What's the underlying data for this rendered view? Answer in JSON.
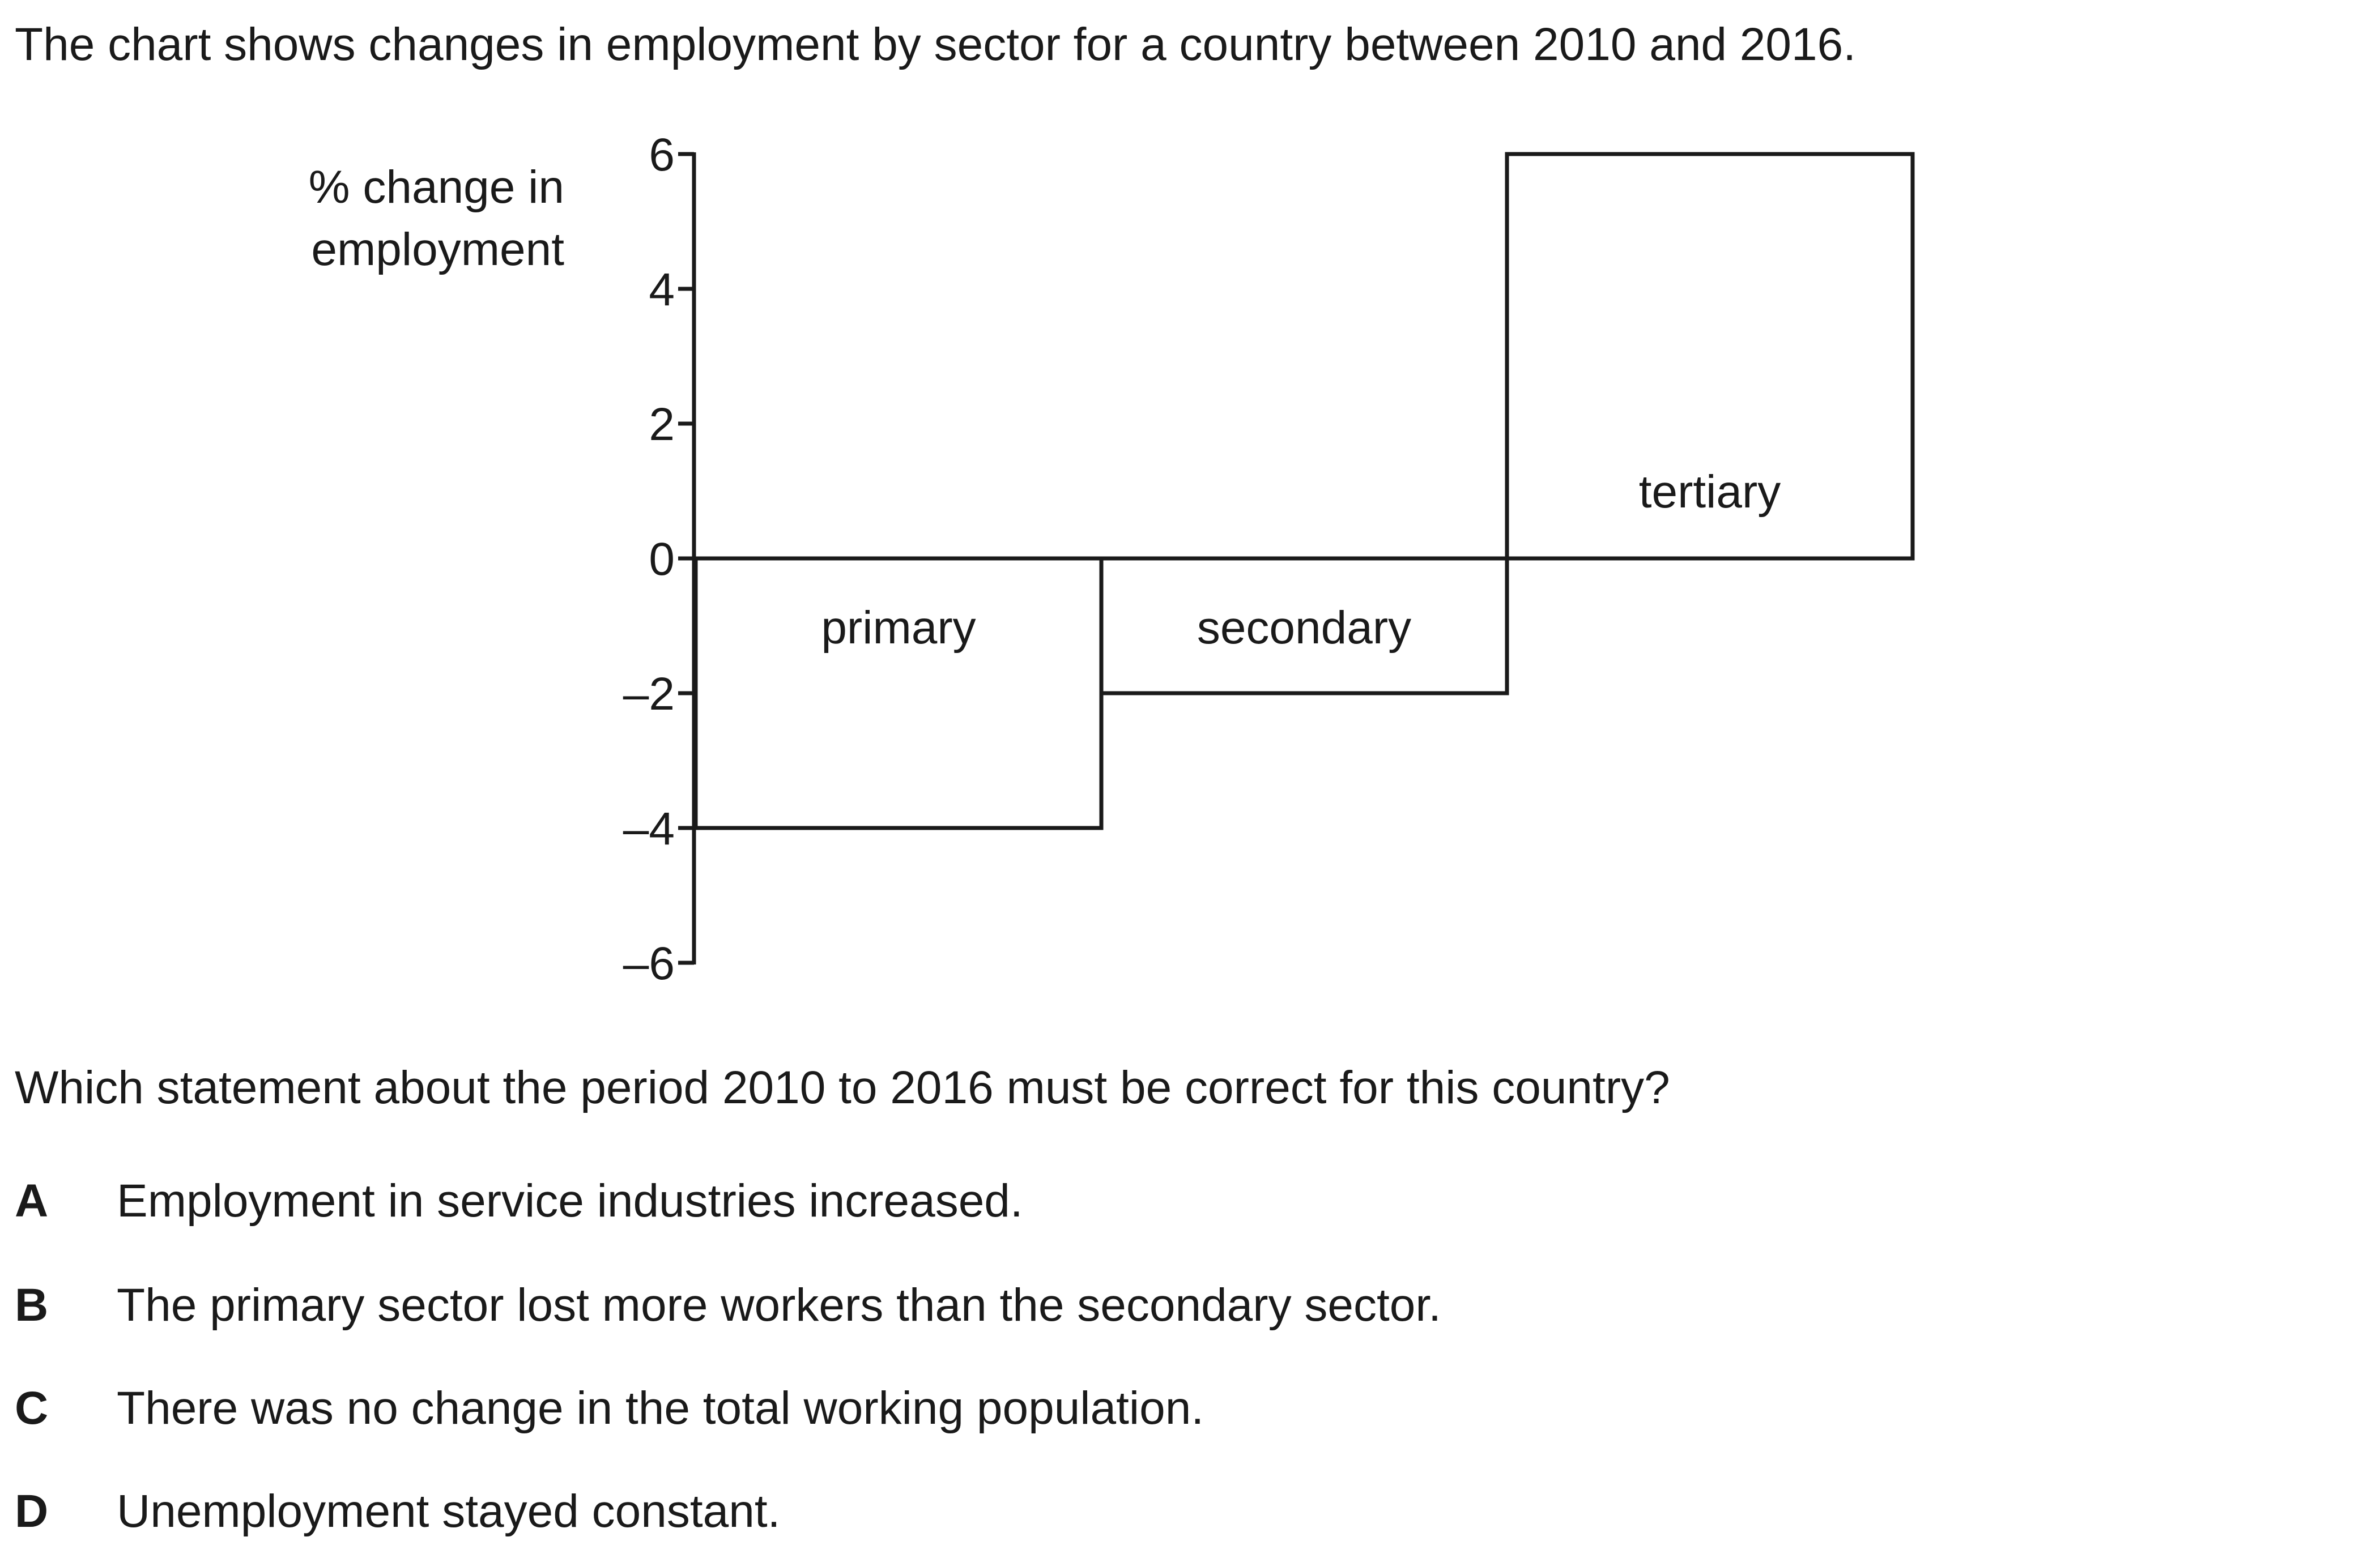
{
  "intro": "The chart shows changes in employment by sector for a country between 2010 and 2016.",
  "question": "Which statement about the period 2010 to 2016 must be correct for this country?",
  "options": [
    {
      "letter": "A",
      "text": "Employment in service industries increased."
    },
    {
      "letter": "B",
      "text": "The primary sector lost more workers than the secondary sector."
    },
    {
      "letter": "C",
      "text": "There was no change in the total working population."
    },
    {
      "letter": "D",
      "text": "Unemployment stayed constant."
    }
  ],
  "chart_data": {
    "type": "bar",
    "ylabel_lines": [
      "% change in",
      "employment"
    ],
    "categories": [
      "primary",
      "secondary",
      "tertiary"
    ],
    "values": [
      -4,
      -2,
      6
    ],
    "ylim": [
      -6,
      6
    ],
    "yticks": [
      6,
      4,
      2,
      0,
      -2,
      -4,
      -6
    ],
    "ytick_labels": [
      "6",
      "4",
      "2",
      "0",
      "–2",
      "–4",
      "–6"
    ],
    "grid": false,
    "bar_fill": "#ffffff",
    "bar_stroke": "#1a1a1a"
  }
}
